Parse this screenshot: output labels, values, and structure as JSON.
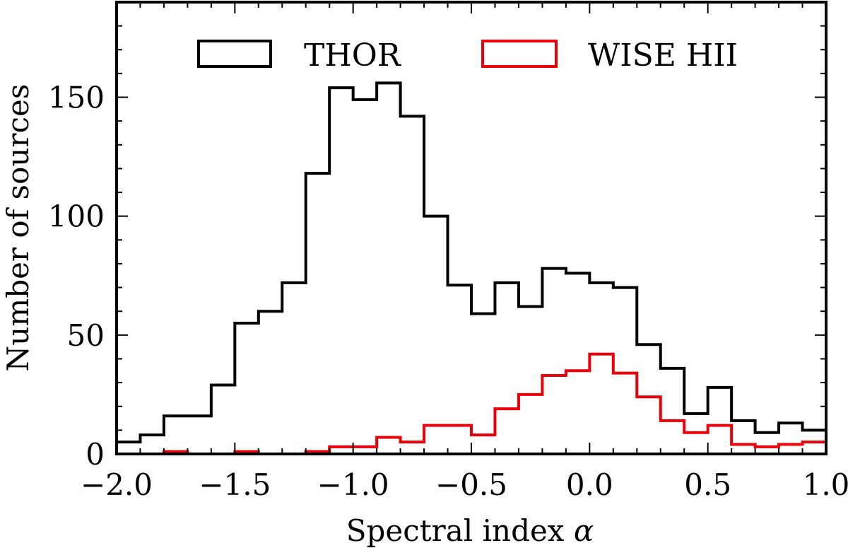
{
  "chart_data": {
    "type": "histogram",
    "title": "",
    "xlabel": "Spectral index",
    "xlabel_symbol": "α",
    "ylabel": "Number of sources",
    "xlim": [
      -2.0,
      1.0
    ],
    "ylim": [
      0,
      190
    ],
    "bin_width": 0.1,
    "bin_edges": [
      -2.0,
      -1.9,
      -1.8,
      -1.7,
      -1.6,
      -1.5,
      -1.4,
      -1.3,
      -1.2,
      -1.1,
      -1.0,
      -0.9,
      -0.8,
      -0.7,
      -0.6,
      -0.5,
      -0.4,
      -0.3,
      -0.2,
      -0.1,
      0.0,
      0.1,
      0.2,
      0.3,
      0.4,
      0.5,
      0.6,
      0.7,
      0.8,
      0.9,
      1.0
    ],
    "xticks": [
      -2.0,
      -1.5,
      -1.0,
      -0.5,
      0.0,
      0.5,
      1.0
    ],
    "xtick_labels": [
      "−2.0",
      "−1.5",
      "−1.0",
      "−0.5",
      "0.0",
      "0.5",
      "1.0"
    ],
    "yticks": [
      0,
      50,
      100,
      150
    ],
    "ytick_labels": [
      "0",
      "50",
      "100",
      "150"
    ],
    "legend_position": "top-center",
    "series": [
      {
        "name": "THOR",
        "color": "#000000",
        "values": [
          5,
          8,
          16,
          16,
          29,
          55,
          60,
          72,
          118,
          154,
          149,
          156,
          142,
          100,
          71,
          59,
          72,
          62,
          78,
          76,
          72,
          70,
          46,
          36,
          17,
          28,
          14,
          9,
          13,
          10
        ]
      },
      {
        "name": "WISE HII",
        "color": "#e8000b",
        "values": [
          0,
          0,
          1,
          0,
          0,
          1,
          0,
          0,
          1,
          3,
          3,
          7,
          5,
          12,
          12,
          8,
          19,
          25,
          33,
          35,
          42,
          34,
          24,
          14,
          9,
          12,
          4,
          3,
          4,
          5
        ]
      }
    ]
  }
}
